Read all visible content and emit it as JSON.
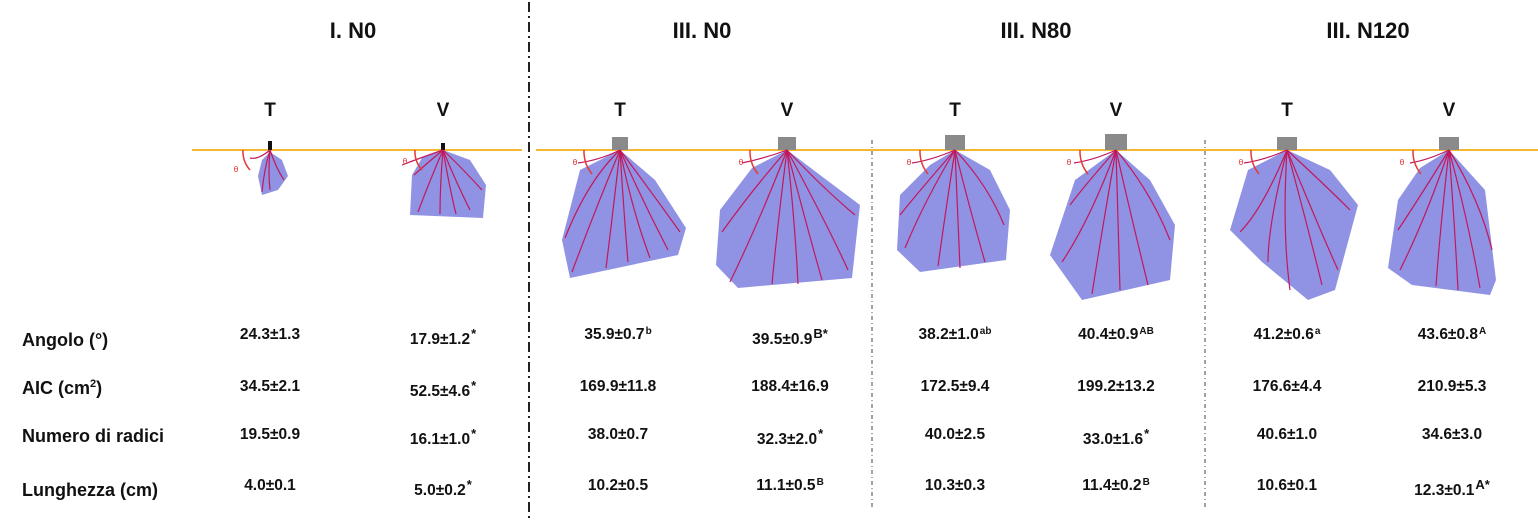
{
  "groups": [
    "I. N0",
    "III. N0",
    "III. N80",
    "III. N120"
  ],
  "column_labels": [
    "T",
    "V",
    "T",
    "V",
    "T",
    "V",
    "T",
    "V"
  ],
  "angle_marker": "θ",
  "row_labels": {
    "angle": "Angolo (°)",
    "aic": "AIC (cm",
    "aic_sup": "2",
    "aic_end": ")",
    "roots": "Numero di radici",
    "length": "Lunghezza (cm)"
  },
  "rows": {
    "angle": [
      {
        "v": "24.3±1.3",
        "s": ""
      },
      {
        "v": "17.9±1.2",
        "s": "*"
      },
      {
        "v": "35.9±0.7",
        "s": "b"
      },
      {
        "v": "39.5±0.9",
        "s": "B*"
      },
      {
        "v": "38.2±1.0",
        "s": "ab"
      },
      {
        "v": "40.4±0.9",
        "s": "AB"
      },
      {
        "v": "41.2±0.6",
        "s": "a"
      },
      {
        "v": "43.6±0.8",
        "s": "A"
      }
    ],
    "aic": [
      {
        "v": "34.5±2.1",
        "s": ""
      },
      {
        "v": "52.5±4.6",
        "s": "*"
      },
      {
        "v": "169.9±11.8",
        "s": ""
      },
      {
        "v": "188.4±16.9",
        "s": ""
      },
      {
        "v": "172.5±9.4",
        "s": ""
      },
      {
        "v": "199.2±13.2",
        "s": ""
      },
      {
        "v": "176.6±4.4",
        "s": ""
      },
      {
        "v": "210.9±5.3",
        "s": ""
      }
    ],
    "roots": [
      {
        "v": "19.5±0.9",
        "s": ""
      },
      {
        "v": "16.1±1.0",
        "s": "*"
      },
      {
        "v": "38.0±0.7",
        "s": ""
      },
      {
        "v": "32.3±2.0",
        "s": "*"
      },
      {
        "v": "40.0±2.5",
        "s": ""
      },
      {
        "v": "33.0±1.6",
        "s": "*"
      },
      {
        "v": "40.6±1.0",
        "s": ""
      },
      {
        "v": "34.6±3.0",
        "s": ""
      }
    ],
    "length": [
      {
        "v": "4.0±0.1",
        "s": ""
      },
      {
        "v": "5.0±0.2",
        "s": "*"
      },
      {
        "v": "10.2±0.5",
        "s": ""
      },
      {
        "v": "11.1±0.5",
        "s": "B"
      },
      {
        "v": "10.3±0.3",
        "s": ""
      },
      {
        "v": "11.4±0.2",
        "s": "B"
      },
      {
        "v": "10.6±0.1",
        "s": ""
      },
      {
        "v": "12.3±0.1",
        "s": "A*"
      }
    ]
  },
  "colors": {
    "soil_line": "#f5b731",
    "hull_fill": "#7c80de",
    "root": "#c2185b",
    "angle_arc": "#e53935"
  }
}
